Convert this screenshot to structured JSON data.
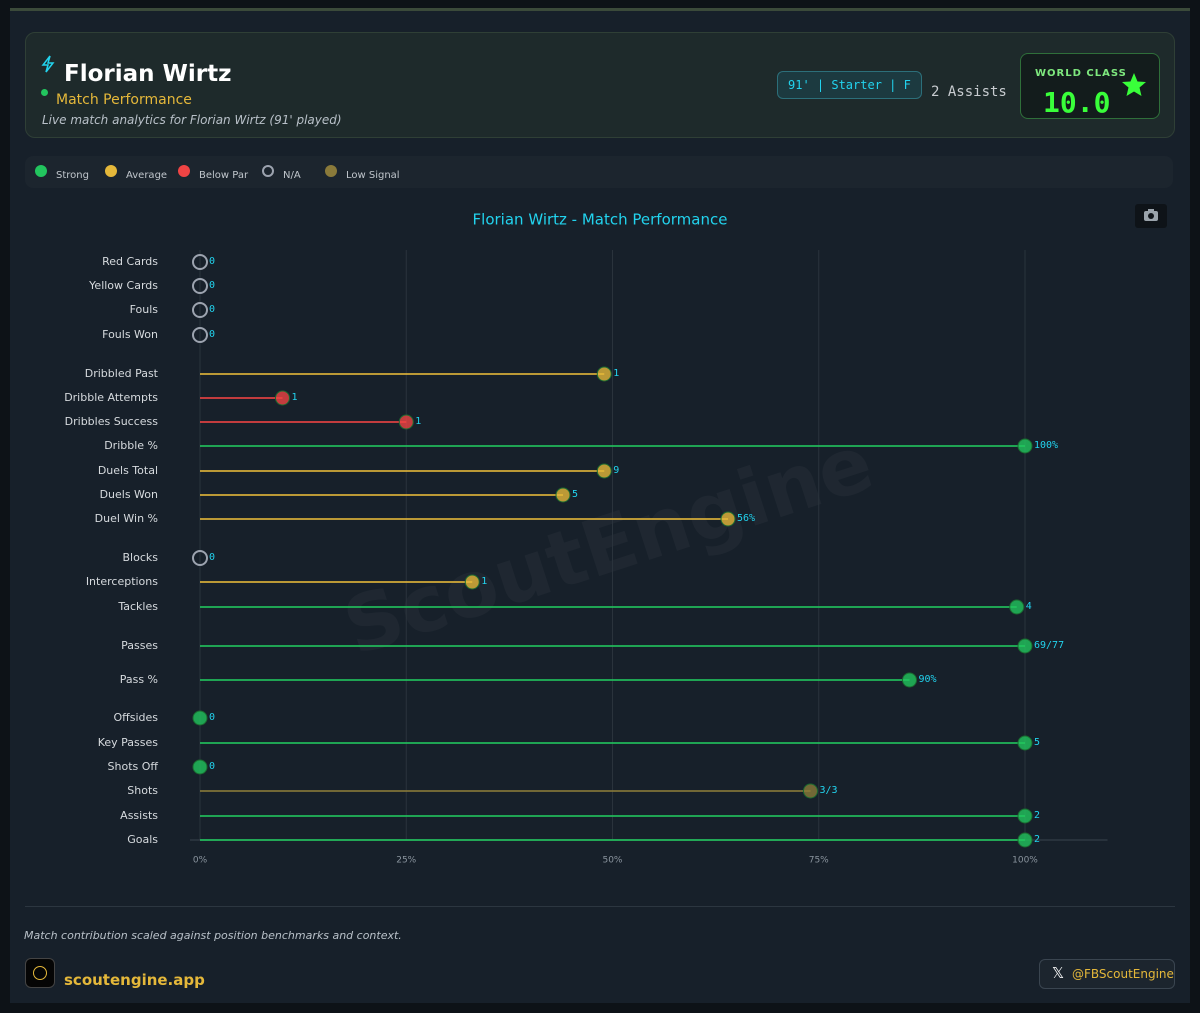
{
  "header": {
    "name": "Florian Wirtz",
    "subtitle": "Match Performance",
    "description": "Live match analytics for Florian Wirtz (91' played)",
    "badge": "91' | Starter | F",
    "assists": "2 Assists",
    "rating_label": "WORLD CLASS",
    "rating": "10.0"
  },
  "legend": [
    {
      "label": "Strong",
      "color": "#22c55e"
    },
    {
      "label": "Average",
      "color": "#e5b83a"
    },
    {
      "label": "Below Par",
      "color": "#ef4444"
    },
    {
      "label": "N/A",
      "color": "#9ca3af",
      "hollow": true
    },
    {
      "label": "Low Signal",
      "color": "#8a7a3a"
    }
  ],
  "watermark": "ScoutEngine",
  "chart_data": {
    "type": "lollipop",
    "title": "Florian Wirtz - Match Performance",
    "categories": [
      "Red Cards",
      "Yellow Cards",
      "Fouls",
      "Fouls Won",
      "Dribbled Past",
      "Dribble Attempts",
      "Dribbles Success",
      "Dribble %",
      "Duels Total",
      "Duels Won",
      "Duel Win %",
      "Blocks",
      "Interceptions",
      "Tackles",
      "Passes",
      "Pass %",
      "Offsides",
      "Key Passes",
      "Shots Off",
      "Shots",
      "Assists",
      "Goals"
    ],
    "values": [
      0,
      0,
      0,
      0,
      49,
      10,
      25,
      100,
      49,
      44,
      64,
      0,
      33,
      99,
      100,
      86,
      0,
      100,
      0,
      74,
      100,
      100
    ],
    "stat_labels": [
      "0",
      "0",
      "0",
      "0",
      "1",
      "1",
      "1",
      "100%",
      "9",
      "5",
      "56%",
      "0",
      "1",
      "4",
      "69/77",
      "90%",
      "0",
      "5",
      "0",
      "3/3",
      "2",
      "2"
    ],
    "colors": [
      "#9ca3af",
      "#9ca3af",
      "#9ca3af",
      "#9ca3af",
      "#e5b83a",
      "#ef4444",
      "#ef4444",
      "#22c55e",
      "#e5b83a",
      "#e5b83a",
      "#e5b83a",
      "#9ca3af",
      "#e5b83a",
      "#22c55e",
      "#22c55e",
      "#22c55e",
      "#22c55e",
      "#22c55e",
      "#22c55e",
      "#8a7a3a",
      "#22c55e",
      "#22c55e"
    ],
    "xlim": [
      0,
      110
    ],
    "xticks": [
      {
        "value": 0,
        "label": "0%"
      },
      {
        "value": 25,
        "label": "25%"
      },
      {
        "value": 50,
        "label": "50%"
      },
      {
        "value": 75,
        "label": "75%"
      },
      {
        "value": 100,
        "label": "100%"
      }
    ],
    "grid": true
  },
  "footer": {
    "note": "Match contribution scaled against position benchmarks and context.",
    "site": "scoutengine.app",
    "handle": "@FBScoutEngine"
  }
}
